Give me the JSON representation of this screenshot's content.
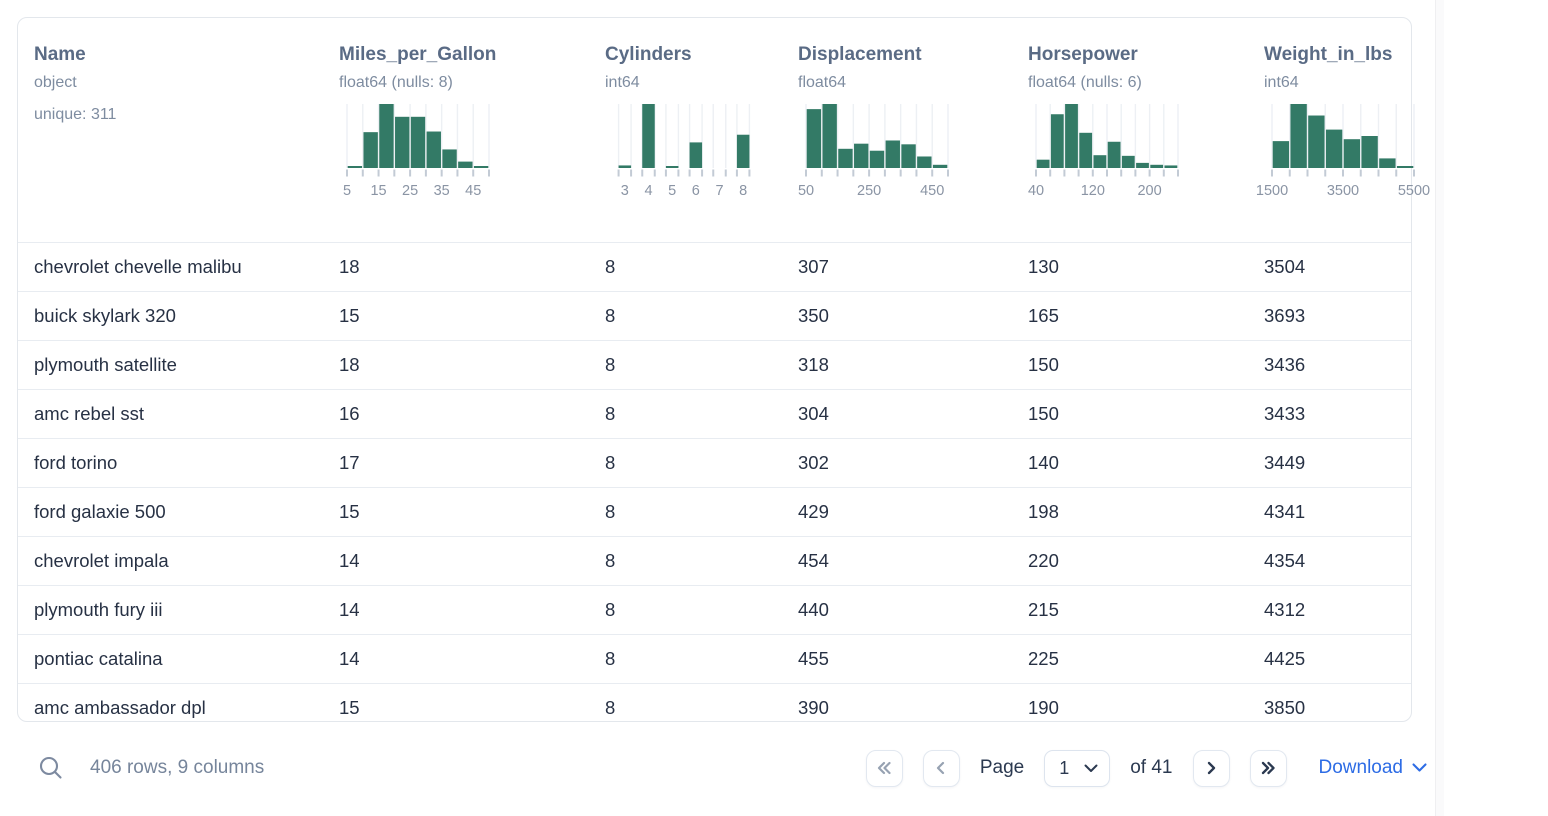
{
  "colors": {
    "histogram_bar": "#337a66",
    "header_text": "#5a6b85",
    "muted_text": "#7e8ca0",
    "row_text": "#273144",
    "link_blue": "#2d6ce5",
    "control_navy": "#2b3950",
    "disabled_chevron": "#97a2b2"
  },
  "icons": {
    "search": "magnifier",
    "first_page": "double-chevron-left",
    "previous_page": "chevron-left",
    "next_page": "chevron-right",
    "last_page": "double-chevron-right",
    "select_caret": "chevron-down",
    "download_caret": "chevron-down"
  },
  "table": {
    "columns": [
      {
        "name": "Name",
        "dtype": "object",
        "extra": "unique: 311",
        "histogram": null
      },
      {
        "name": "Miles_per_Gallon",
        "dtype": "float64 (nulls: 8)",
        "extra": null,
        "histogram": {
          "type": "histogram",
          "style": "contiguous",
          "bin_edges": [
            5,
            10,
            15,
            20,
            25,
            30,
            35,
            40,
            45,
            50
          ],
          "rel_heights": [
            0.03,
            0.56,
            1.0,
            0.8,
            0.8,
            0.57,
            0.29,
            0.1,
            0.03
          ],
          "tick_labels": [
            {
              "text": "5",
              "edge": 0
            },
            {
              "text": "15",
              "edge": 2
            },
            {
              "text": "25",
              "edge": 4
            },
            {
              "text": "35",
              "edge": 6
            },
            {
              "text": "45",
              "edge": 8
            }
          ]
        }
      },
      {
        "name": "Cylinders",
        "dtype": "int64",
        "extra": null,
        "histogram": {
          "type": "histogram",
          "style": "spaced",
          "categories": [
            3,
            4,
            5,
            6,
            7,
            8
          ],
          "rel_heights": [
            0.04,
            1.0,
            0.03,
            0.4,
            0,
            0.52
          ],
          "tick_labels": [
            {
              "text": "3",
              "slot": 0
            },
            {
              "text": "4",
              "slot": 1
            },
            {
              "text": "5",
              "slot": 2
            },
            {
              "text": "6",
              "slot": 3
            },
            {
              "text": "7",
              "slot": 4
            },
            {
              "text": "8",
              "slot": 5
            }
          ]
        }
      },
      {
        "name": "Displacement",
        "dtype": "float64",
        "extra": null,
        "histogram": {
          "type": "histogram",
          "style": "contiguous",
          "bin_edges": [
            50,
            100,
            150,
            200,
            250,
            300,
            350,
            400,
            450,
            500
          ],
          "rel_heights": [
            0.92,
            1.0,
            0.3,
            0.38,
            0.27,
            0.43,
            0.37,
            0.18,
            0.05
          ],
          "tick_labels": [
            {
              "text": "50",
              "edge": 0
            },
            {
              "text": "250",
              "edge": 4
            },
            {
              "text": "450",
              "edge": 8
            }
          ]
        }
      },
      {
        "name": "Horsepower",
        "dtype": "float64 (nulls: 6)",
        "extra": null,
        "histogram": {
          "type": "histogram",
          "style": "contiguous",
          "bin_edges": [
            40,
            60,
            80,
            100,
            120,
            140,
            160,
            180,
            200,
            220,
            240
          ],
          "rel_heights": [
            0.13,
            0.84,
            1.0,
            0.55,
            0.2,
            0.41,
            0.19,
            0.08,
            0.05,
            0.04
          ],
          "tick_labels": [
            {
              "text": "40",
              "edge": 0
            },
            {
              "text": "120",
              "edge": 4
            },
            {
              "text": "200",
              "edge": 8
            }
          ]
        }
      },
      {
        "name": "Weight_in_lbs",
        "dtype": "int64",
        "extra": null,
        "histogram": {
          "type": "histogram",
          "style": "contiguous",
          "bin_edges": [
            1500,
            2000,
            2500,
            3000,
            3500,
            4000,
            4500,
            5000,
            5500
          ],
          "rel_heights": [
            0.42,
            1.0,
            0.82,
            0.6,
            0.45,
            0.5,
            0.15,
            0.03
          ],
          "tick_labels": [
            {
              "text": "1500",
              "edge": 0
            },
            {
              "text": "3500",
              "edge": 4
            },
            {
              "text": "5500",
              "edge": 8
            }
          ]
        }
      }
    ],
    "rows": [
      [
        "chevrolet chevelle malibu",
        "18",
        "8",
        "307",
        "130",
        "3504"
      ],
      [
        "buick skylark 320",
        "15",
        "8",
        "350",
        "165",
        "3693"
      ],
      [
        "plymouth satellite",
        "18",
        "8",
        "318",
        "150",
        "3436"
      ],
      [
        "amc rebel sst",
        "16",
        "8",
        "304",
        "150",
        "3433"
      ],
      [
        "ford torino",
        "17",
        "8",
        "302",
        "140",
        "3449"
      ],
      [
        "ford galaxie 500",
        "15",
        "8",
        "429",
        "198",
        "4341"
      ],
      [
        "chevrolet impala",
        "14",
        "8",
        "454",
        "220",
        "4354"
      ],
      [
        "plymouth fury iii",
        "14",
        "8",
        "440",
        "215",
        "4312"
      ],
      [
        "pontiac catalina",
        "14",
        "8",
        "455",
        "225",
        "4425"
      ],
      [
        "amc ambassador dpl",
        "15",
        "8",
        "390",
        "190",
        "3850"
      ]
    ]
  },
  "footer": {
    "summary": "406 rows, 9 columns",
    "page_label": "Page",
    "current_page": "1",
    "total_pages_label": "of 41",
    "download_label": "Download"
  }
}
